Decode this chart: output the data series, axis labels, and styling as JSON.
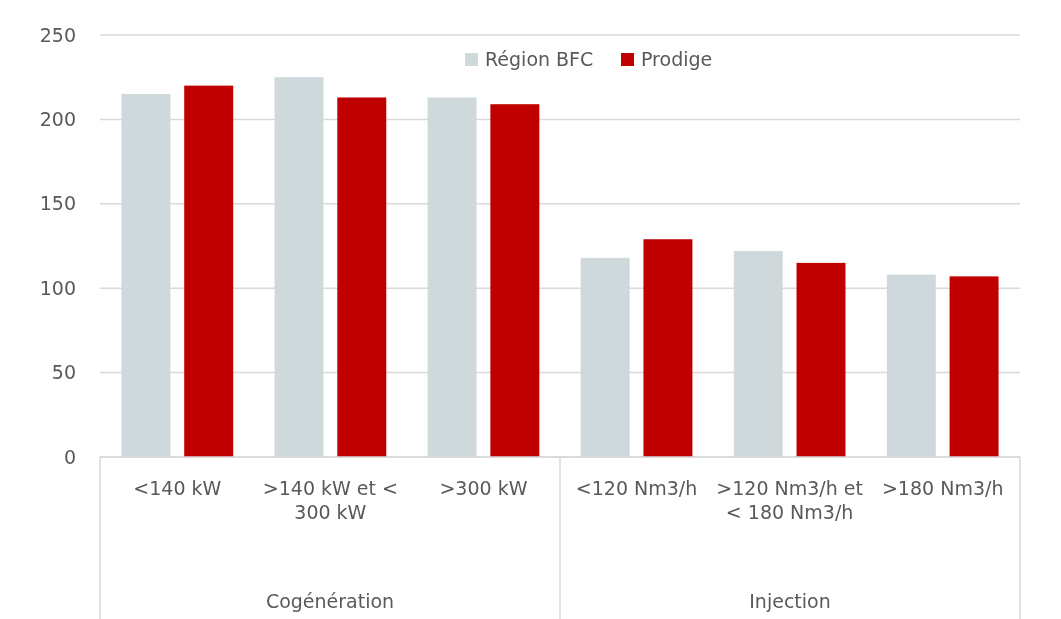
{
  "chart_data": {
    "type": "bar",
    "categories": [
      "<140 kW",
      ">140 kW et < 300 kW",
      ">300 kW",
      "<120 Nm3/h",
      ">120 Nm3/h et < 180 Nm3/h",
      ">180 Nm3/h"
    ],
    "series": [
      {
        "name": "Région BFC",
        "color": "#cfd9dc",
        "values": [
          215,
          225,
          213,
          118,
          122,
          108
        ]
      },
      {
        "name": "Prodige",
        "color": "#c00000",
        "values": [
          220,
          213,
          209,
          129,
          115,
          107
        ]
      }
    ],
    "ylim": [
      0,
      250
    ],
    "yticks": [
      0,
      50,
      100,
      150,
      200,
      250
    ],
    "grid": "y",
    "legend": "top",
    "annotations": [
      "Cogénération",
      "Injection"
    ]
  }
}
